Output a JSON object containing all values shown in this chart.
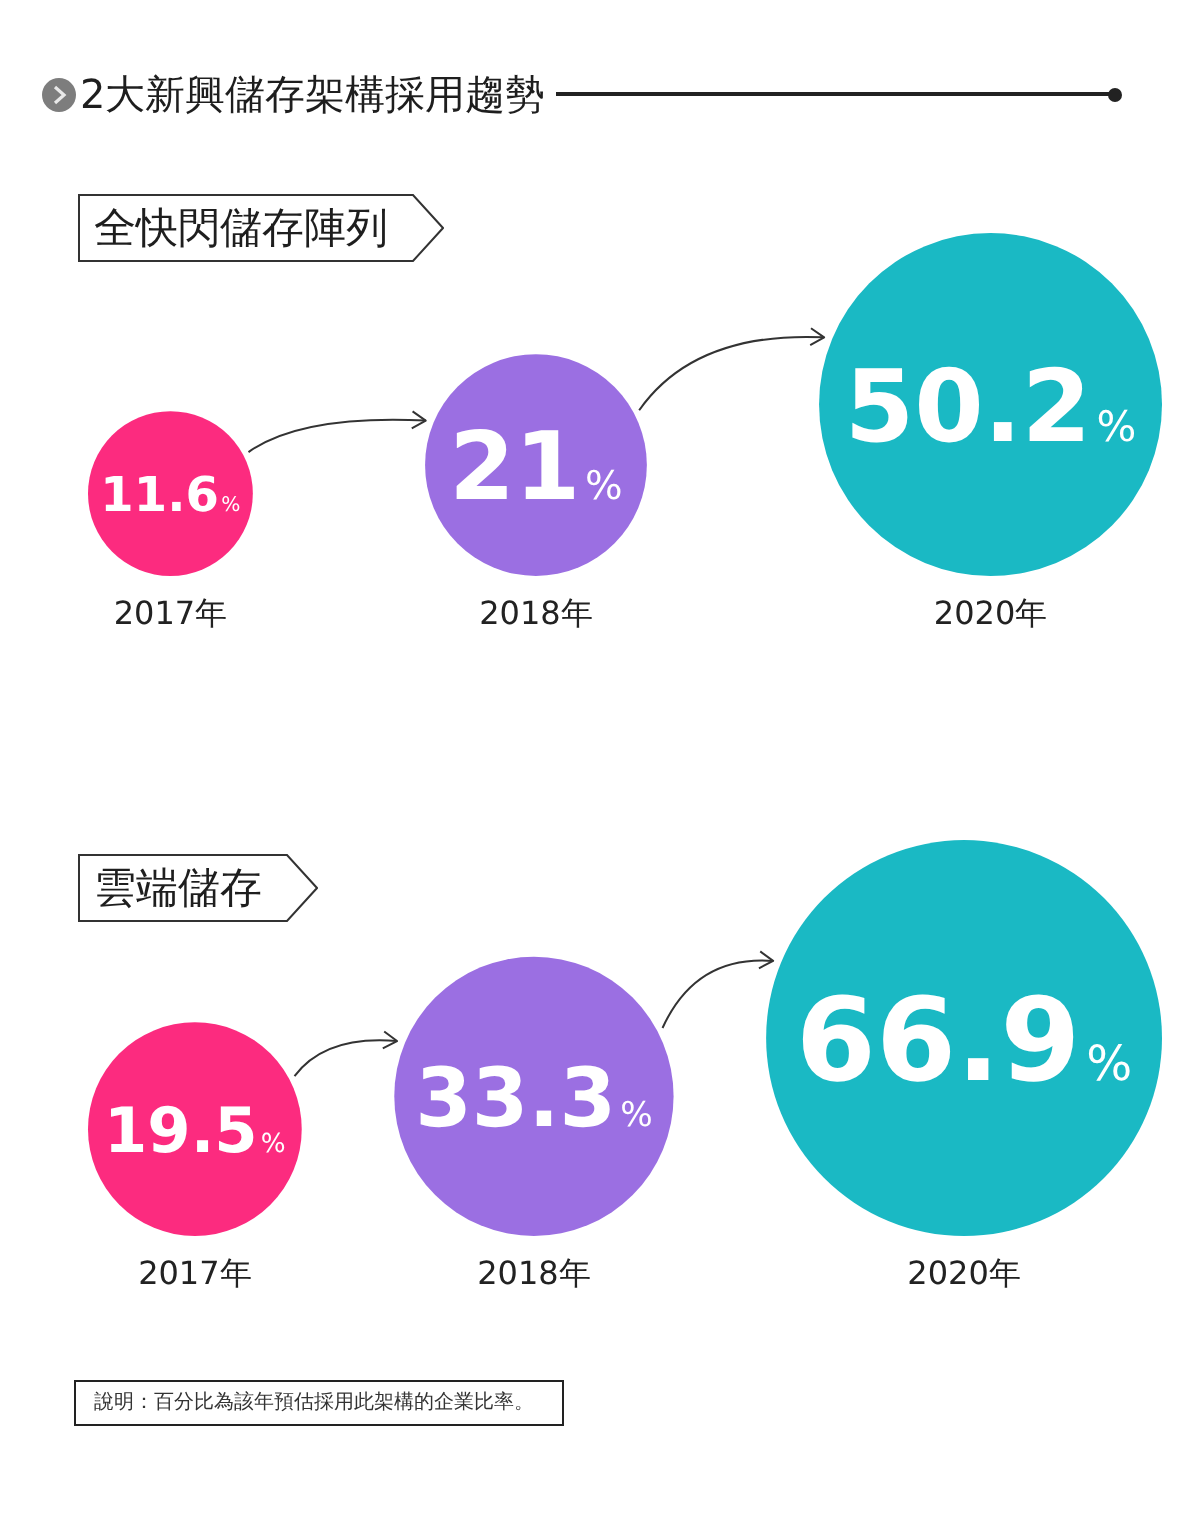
{
  "chart_data": [
    {
      "type": "other",
      "title": "2大新興儲存架構採用趨勢",
      "subtitle": "全快閃儲存陣列",
      "categories": [
        "2017年",
        "2018年",
        "2020年"
      ],
      "values": [
        11.6,
        21,
        50.2
      ],
      "colors": [
        "#fc2b7f",
        "#9b6fe2",
        "#1ab9c4"
      ],
      "value_labels": [
        "11.6%",
        "21%",
        "50.2%"
      ]
    },
    {
      "type": "other",
      "subtitle": "雲端儲存",
      "categories": [
        "2017年",
        "2018年",
        "2020年"
      ],
      "values": [
        19.5,
        33.3,
        66.9
      ],
      "colors": [
        "#fc2b7f",
        "#9b6fe2",
        "#1ab9c4"
      ],
      "value_labels": [
        "19.5%",
        "33.3%",
        "66.9%"
      ],
      "annotations": [
        "說明：百分比為該年預估採用此架構的企業比率。"
      ]
    }
  ]
}
